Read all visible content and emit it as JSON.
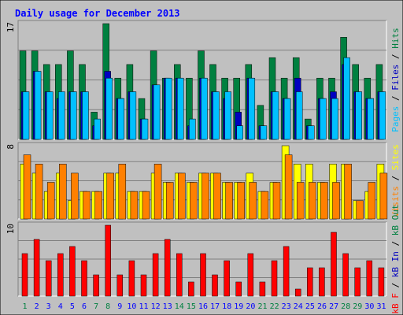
{
  "chart_data": {
    "type": "bar",
    "title": "Daily usage for December 2013",
    "x": [
      "1",
      "2",
      "3",
      "4",
      "5",
      "6",
      "7",
      "8",
      "9",
      "10",
      "11",
      "12",
      "13",
      "14",
      "15",
      "16",
      "17",
      "18",
      "19",
      "20",
      "21",
      "22",
      "23",
      "24",
      "25",
      "26",
      "27",
      "28",
      "29",
      "30",
      "31"
    ],
    "weekend_days": [
      "1",
      "7",
      "8",
      "14",
      "15",
      "21",
      "22",
      "28",
      "29"
    ],
    "panels": [
      {
        "id": "top",
        "ymax_label": "17",
        "ylim": [
          0,
          17
        ],
        "legend": [
          "Pages",
          "Files",
          "Hits"
        ],
        "series": [
          {
            "name": "Hits",
            "color": "#008040",
            "values": [
              13,
              13,
              11,
              11,
              13,
              11,
              4,
              17,
              9,
              11,
              6,
              13,
              9,
              11,
              9,
              13,
              11,
              9,
              9,
              11,
              5,
              12,
              9,
              12,
              3,
              9,
              9,
              15,
              11,
              9,
              11
            ]
          },
          {
            "name": "Files",
            "color": "#0000c0",
            "values": [
              7,
              10,
              7,
              6,
              7,
              7,
              2,
              10,
              6,
              7,
              3,
              8,
              9,
              9,
              2,
              9,
              7,
              6,
              4,
              9,
              2,
              7,
              6,
              9,
              2,
              6,
              7,
              11,
              7,
              6,
              7
            ]
          },
          {
            "name": "Pages",
            "color": "#00c0ff",
            "values": [
              7,
              10,
              7,
              7,
              7,
              7,
              3,
              9,
              6,
              7,
              3,
              8,
              9,
              9,
              3,
              9,
              7,
              7,
              2,
              9,
              2,
              7,
              6,
              7,
              2,
              6,
              6,
              12,
              7,
              6,
              7
            ]
          }
        ]
      },
      {
        "id": "middle",
        "ymax_label": "8",
        "ylim": [
          0,
          8
        ],
        "legend": [
          "Visits",
          "Sites"
        ],
        "series": [
          {
            "name": "Visits",
            "color": "#ffff00",
            "values": [
              6,
              5,
              3,
              5,
              2,
              3,
              3,
              5,
              5,
              3,
              3,
              5,
              4,
              5,
              4,
              5,
              5,
              4,
              4,
              5,
              3,
              4,
              8,
              6,
              6,
              4,
              6,
              6,
              2,
              3,
              6
            ]
          },
          {
            "name": "Sites",
            "color": "#ff8000",
            "values": [
              7,
              6,
              4,
              6,
              5,
              3,
              3,
              5,
              6,
              3,
              3,
              6,
              4,
              5,
              4,
              5,
              5,
              4,
              4,
              4,
              3,
              4,
              7,
              4,
              4,
              4,
              4,
              6,
              2,
              4,
              5
            ]
          }
        ]
      },
      {
        "id": "bottom",
        "ymax_label": "10",
        "ylim": [
          0,
          10
        ],
        "legend": [
          "KBytes"
        ],
        "legend_side": [
          "kB F",
          "kB In",
          "kB Out"
        ],
        "series": [
          {
            "name": "KBytes",
            "color": "#ff0000",
            "values": [
              6,
              8,
              5,
              6,
              7,
              5,
              3,
              10,
              3,
              5,
              3,
              6,
              8,
              6,
              2,
              6,
              3,
              5,
              2,
              6,
              2,
              5,
              7,
              1,
              4,
              4,
              9,
              6,
              4,
              5,
              4
            ]
          }
        ]
      }
    ],
    "colors": {
      "background": "#c0c0c0",
      "title": "#0000ff",
      "axis_line": "#000000",
      "grid": "#808080",
      "label_weekday": "#0000ff",
      "label_weekend": "#008040"
    }
  }
}
